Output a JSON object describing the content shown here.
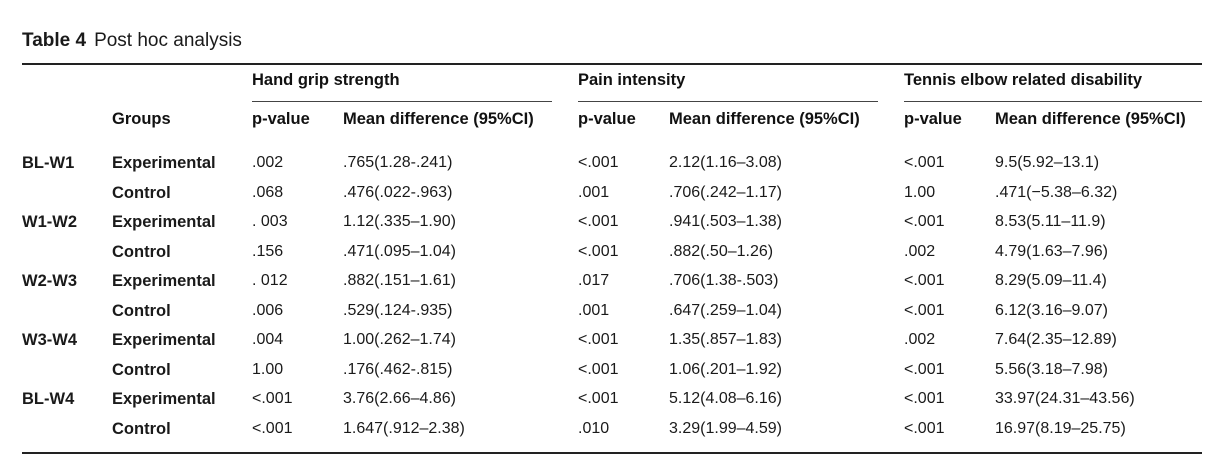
{
  "caption": {
    "label": "Table 4",
    "title": "Post hoc analysis"
  },
  "headers": {
    "groups": "Groups",
    "hand_grip": "Hand grip strength",
    "pain": "Pain intensity",
    "tennis": "Tennis elbow related disability",
    "p_value": "p-value",
    "mean_diff": "Mean difference (95%CI)"
  },
  "rows": [
    {
      "period": "BL-W1",
      "group": "Experimental",
      "hg_p": ".002",
      "hg_md": ".765(1.28-.241)",
      "pi_p": "<.001",
      "pi_md": "2.12(1.16–3.08)",
      "te_p": "<.001",
      "te_md": "9.5(5.92–13.1)"
    },
    {
      "period": "",
      "group": "Control",
      "hg_p": ".068",
      "hg_md": ".476(.022-.963)",
      "pi_p": ".001",
      "pi_md": ".706(.242–1.17)",
      "te_p": "1.00",
      "te_md": ".471(−5.38–6.32)"
    },
    {
      "period": "W1-W2",
      "group": "Experimental",
      "hg_p": ". 003",
      "hg_md": "1.12(.335–1.90)",
      "pi_p": "<.001",
      "pi_md": ".941(.503–1.38)",
      "te_p": "<.001",
      "te_md": "8.53(5.11–11.9)"
    },
    {
      "period": "",
      "group": "Control",
      "hg_p": ".156",
      "hg_md": ".471(.095–1.04)",
      "pi_p": "<.001",
      "pi_md": ".882(.50–1.26)",
      "te_p": ".002",
      "te_md": "4.79(1.63–7.96)"
    },
    {
      "period": "W2-W3",
      "group": "Experimental",
      "hg_p": ". 012",
      "hg_md": ".882(.151–1.61)",
      "pi_p": ".017",
      "pi_md": ".706(1.38-.503)",
      "te_p": "<.001",
      "te_md": "8.29(5.09–11.4)"
    },
    {
      "period": "",
      "group": "Control",
      "hg_p": ".006",
      "hg_md": ".529(.124-.935)",
      "pi_p": ".001",
      "pi_md": ".647(.259–1.04)",
      "te_p": "<.001",
      "te_md": "6.12(3.16–9.07)"
    },
    {
      "period": "W3-W4",
      "group": "Experimental",
      "hg_p": ".004",
      "hg_md": "1.00(.262–1.74)",
      "pi_p": "<.001",
      "pi_md": "1.35(.857–1.83)",
      "te_p": ".002",
      "te_md": "7.64(2.35–12.89)"
    },
    {
      "period": "",
      "group": "Control",
      "hg_p": "1.00",
      "hg_md": ".176(.462-.815)",
      "pi_p": "<.001",
      "pi_md": "1.06(.201–1.92)",
      "te_p": "<.001",
      "te_md": "5.56(3.18–7.98)"
    },
    {
      "period": "BL-W4",
      "group": "Experimental",
      "hg_p": "<.001",
      "hg_md": "3.76(2.66–4.86)",
      "pi_p": "<.001",
      "pi_md": "5.12(4.08–6.16)",
      "te_p": "<.001",
      "te_md": "33.97(24.31–43.56)"
    },
    {
      "period": "",
      "group": "Control",
      "hg_p": "<.001",
      "hg_md": "1.647(.912–2.38)",
      "pi_p": ".010",
      "pi_md": "3.29(1.99–4.59)",
      "te_p": "<.001",
      "te_md": "16.97(8.19–25.75)"
    }
  ]
}
